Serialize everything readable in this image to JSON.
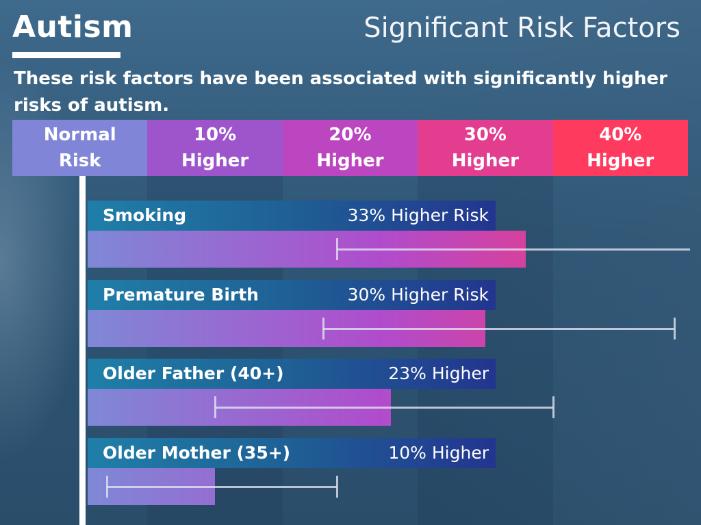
{
  "title": "Autism",
  "subtitle": "Significant Risk Factors",
  "description": "These risk factors have been associated with significantly higher risks of autism.",
  "colors": {
    "header": [
      "#8085d8",
      "#9e55cc",
      "#bb46c0",
      "#e23d8f",
      "#ff3a5f"
    ],
    "bar_start": "#7f88d6",
    "bar_mid": "#b04ccc",
    "bar_end": "#ee3a80"
  },
  "chart_data": {
    "type": "bar",
    "orientation": "horizontal",
    "title": "Significant Risk Factors",
    "x_scale_labels": [
      "Normal\nRisk",
      "10%\nHigher",
      "20%\nHigher",
      "30%\nHigher",
      "40%\nHigher"
    ],
    "x_scale_values": [
      0,
      10,
      20,
      30,
      40
    ],
    "xlim": [
      -5,
      45
    ],
    "categories": [
      "Smoking",
      "Premature Birth",
      "Older Father (40+)",
      "Older Mother (35+)"
    ],
    "value_labels": [
      "33% Higher Risk",
      "30% Higher Risk",
      "23% Higher",
      "10% Higher"
    ],
    "values": [
      33,
      30,
      23,
      10
    ],
    "ci_low": [
      19,
      18,
      10,
      0
    ],
    "ci_high": [
      47,
      44,
      35,
      19
    ],
    "grid": false,
    "legend": "none"
  }
}
